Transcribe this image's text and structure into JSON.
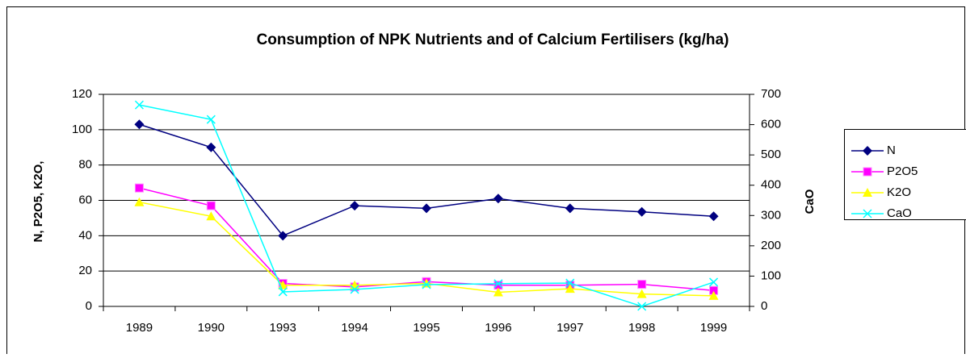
{
  "chart_data": {
    "type": "line",
    "title": "Consumption of NPK Nutrients and of Calcium Fertilisers (kg/ha)",
    "ylabel": "N, P2O5, K2O,",
    "y2label": "CaO",
    "categories": [
      "1989",
      "1990",
      "1993",
      "1994",
      "1995",
      "1996",
      "1997",
      "1998",
      "1999"
    ],
    "series": [
      {
        "name": "N",
        "color": "#000080",
        "marker": "diamond",
        "values": [
          103,
          90,
          40,
          57,
          55.5,
          61,
          55.5,
          53.5,
          51
        ]
      },
      {
        "name": "P2O5",
        "color": "#FF00FF",
        "marker": "square",
        "values": [
          67,
          57,
          13,
          11,
          14,
          12,
          12,
          12.5,
          9
        ]
      },
      {
        "name": "K2O",
        "color": "#FFFF00",
        "marker": "triangle",
        "values": [
          59,
          51,
          12,
          12,
          13,
          8,
          10,
          7,
          6
        ]
      },
      {
        "name": "CaO",
        "color": "#00FFFF",
        "marker": "x",
        "axis": "y2",
        "values": [
          665,
          617,
          48,
          56,
          72,
          75,
          77,
          0,
          80
        ]
      }
    ],
    "ylim": [
      0,
      120
    ],
    "yticks": [
      0,
      20,
      40,
      60,
      80,
      100,
      120
    ],
    "y2lim": [
      0,
      700
    ],
    "y2ticks": [
      0,
      100,
      200,
      300,
      400,
      500,
      600,
      700
    ],
    "grid": true,
    "legend": "right"
  }
}
